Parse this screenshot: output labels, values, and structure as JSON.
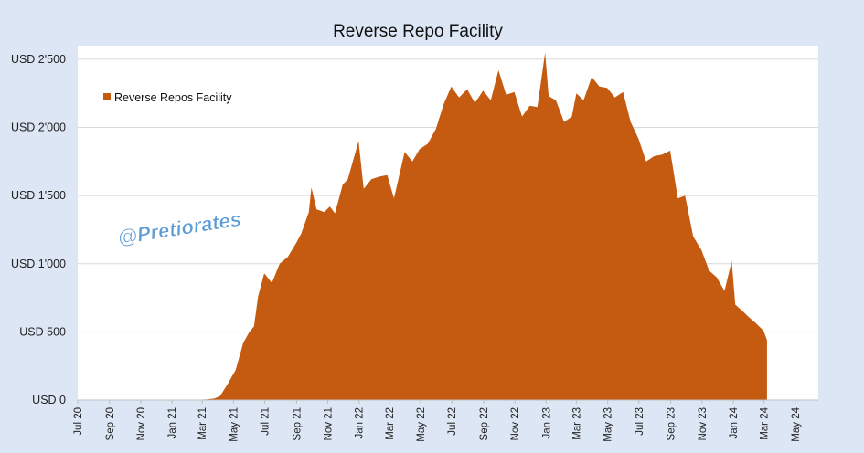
{
  "chart_data": {
    "type": "area",
    "title": "Reverse Repo Facility",
    "xlabel": "",
    "ylabel": "",
    "series": [
      {
        "name": "Reverse Repos Facility",
        "color": "#c55a11",
        "points": [
          [
            "2020-07-01",
            0
          ],
          [
            "2020-09-01",
            0
          ],
          [
            "2020-11-01",
            0
          ],
          [
            "2021-01-01",
            1
          ],
          [
            "2021-02-15",
            1
          ],
          [
            "2021-03-10",
            5
          ],
          [
            "2021-03-25",
            12
          ],
          [
            "2021-04-05",
            30
          ],
          [
            "2021-04-20",
            120
          ],
          [
            "2021-05-05",
            220
          ],
          [
            "2021-05-20",
            420
          ],
          [
            "2021-06-01",
            500
          ],
          [
            "2021-06-10",
            540
          ],
          [
            "2021-06-18",
            760
          ],
          [
            "2021-06-30",
            930
          ],
          [
            "2021-07-15",
            860
          ],
          [
            "2021-07-30",
            1000
          ],
          [
            "2021-08-15",
            1050
          ],
          [
            "2021-08-31",
            1150
          ],
          [
            "2021-09-10",
            1220
          ],
          [
            "2021-09-25",
            1380
          ],
          [
            "2021-09-30",
            1560
          ],
          [
            "2021-10-10",
            1400
          ],
          [
            "2021-10-25",
            1380
          ],
          [
            "2021-11-05",
            1420
          ],
          [
            "2021-11-15",
            1370
          ],
          [
            "2021-11-30",
            1580
          ],
          [
            "2021-12-10",
            1620
          ],
          [
            "2021-12-31",
            1900
          ],
          [
            "2022-01-10",
            1550
          ],
          [
            "2022-01-25",
            1620
          ],
          [
            "2022-02-10",
            1640
          ],
          [
            "2022-02-25",
            1650
          ],
          [
            "2022-03-10",
            1480
          ],
          [
            "2022-03-31",
            1820
          ],
          [
            "2022-04-15",
            1750
          ],
          [
            "2022-04-29",
            1840
          ],
          [
            "2022-05-15",
            1880
          ],
          [
            "2022-05-31",
            1990
          ],
          [
            "2022-06-15",
            2170
          ],
          [
            "2022-06-30",
            2300
          ],
          [
            "2022-07-15",
            2220
          ],
          [
            "2022-07-31",
            2280
          ],
          [
            "2022-08-15",
            2180
          ],
          [
            "2022-08-31",
            2270
          ],
          [
            "2022-09-15",
            2200
          ],
          [
            "2022-09-30",
            2420
          ],
          [
            "2022-10-15",
            2240
          ],
          [
            "2022-10-31",
            2260
          ],
          [
            "2022-11-15",
            2080
          ],
          [
            "2022-11-30",
            2160
          ],
          [
            "2022-12-15",
            2150
          ],
          [
            "2022-12-30",
            2550
          ],
          [
            "2023-01-06",
            2230
          ],
          [
            "2023-01-20",
            2200
          ],
          [
            "2023-02-05",
            2040
          ],
          [
            "2023-02-20",
            2080
          ],
          [
            "2023-03-01",
            2250
          ],
          [
            "2023-03-15",
            2200
          ],
          [
            "2023-03-31",
            2370
          ],
          [
            "2023-04-15",
            2300
          ],
          [
            "2023-04-30",
            2290
          ],
          [
            "2023-05-15",
            2220
          ],
          [
            "2023-05-31",
            2260
          ],
          [
            "2023-06-15",
            2040
          ],
          [
            "2023-06-30",
            1920
          ],
          [
            "2023-07-15",
            1750
          ],
          [
            "2023-07-31",
            1790
          ],
          [
            "2023-08-15",
            1800
          ],
          [
            "2023-08-31",
            1830
          ],
          [
            "2023-09-15",
            1480
          ],
          [
            "2023-09-29",
            1500
          ],
          [
            "2023-10-15",
            1200
          ],
          [
            "2023-10-31",
            1100
          ],
          [
            "2023-11-15",
            950
          ],
          [
            "2023-11-30",
            900
          ],
          [
            "2023-12-15",
            800
          ],
          [
            "2023-12-29",
            1020
          ],
          [
            "2024-01-05",
            700
          ],
          [
            "2024-01-20",
            650
          ],
          [
            "2024-01-31",
            610
          ],
          [
            "2024-02-15",
            560
          ],
          [
            "2024-02-29",
            510
          ],
          [
            "2024-03-07",
            440
          ]
        ]
      }
    ],
    "xlim": [
      "2020-07-01",
      "2024-06-15"
    ],
    "ylim": [
      0,
      2600
    ],
    "y_ticks": [
      0,
      500,
      1000,
      1500,
      2000,
      2500
    ],
    "y_tick_labels": [
      "USD 0",
      "USD 500",
      "USD 1'000",
      "USD 1'500",
      "USD 2'000",
      "USD 2'500"
    ],
    "x_ticks": [
      "2020-07-01",
      "2020-09-01",
      "2020-11-01",
      "2021-01-01",
      "2021-03-01",
      "2021-05-01",
      "2021-07-01",
      "2021-09-01",
      "2021-11-01",
      "2022-01-01",
      "2022-03-01",
      "2022-05-01",
      "2022-07-01",
      "2022-09-01",
      "2022-11-01",
      "2023-01-01",
      "2023-03-01",
      "2023-05-01",
      "2023-07-01",
      "2023-09-01",
      "2023-11-01",
      "2024-01-01",
      "2024-03-01",
      "2024-05-01"
    ],
    "x_tick_labels": [
      "Jul 20",
      "Sep 20",
      "Nov 20",
      "Jan 21",
      "Mar 21",
      "May 21",
      "Jul 21",
      "Sep 21",
      "Nov 21",
      "Jan 22",
      "Mar 22",
      "May 22",
      "Jul 22",
      "Sep 22",
      "Nov 22",
      "Jan 23",
      "Mar 23",
      "May 23",
      "Jul 23",
      "Sep 23",
      "Nov 23",
      "Jan 24",
      "Mar 24",
      "May 24"
    ],
    "grid": "horizontal",
    "legend_position": "top-left",
    "watermark": "@Pretiorates",
    "background_color": "#dce6f4",
    "plot_background_color": "#ffffff"
  }
}
